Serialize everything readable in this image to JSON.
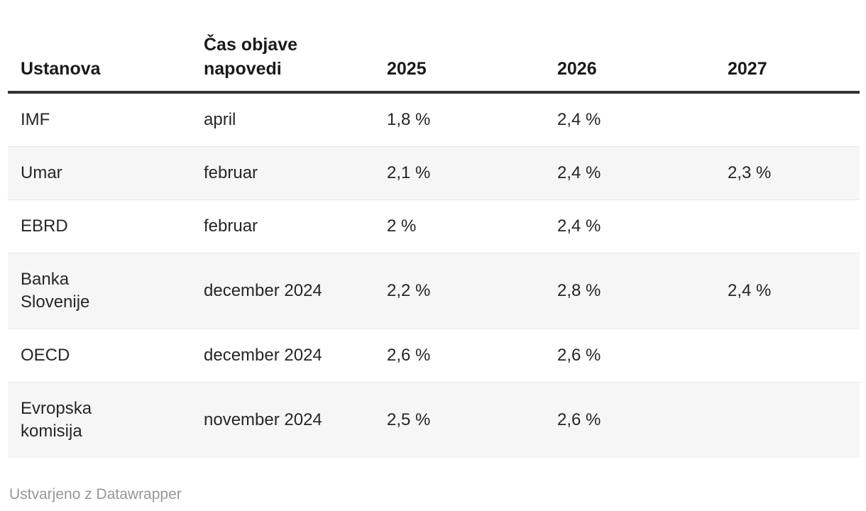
{
  "chart_data": {
    "type": "table",
    "columns": [
      "Ustanova",
      "Čas objave napovedi",
      "2025",
      "2026",
      "2027"
    ],
    "rows": [
      [
        "IMF",
        "april",
        "1,8 %",
        "2,4 %",
        ""
      ],
      [
        "Umar",
        "februar",
        "2,1 %",
        "2,4 %",
        "2,3 %"
      ],
      [
        "EBRD",
        "februar",
        "2 %",
        "2,4 %",
        ""
      ],
      [
        "Banka Slovenije",
        "december 2024",
        "2,2 %",
        "2,8 %",
        "2,4 %"
      ],
      [
        "OECD",
        "december 2024",
        "2,6 %",
        "2,6 %",
        ""
      ],
      [
        "Evropska komisija",
        "november 2024",
        "2,5 %",
        "2,6 %",
        ""
      ]
    ],
    "layout": {
      "header_rule": true,
      "zebra_striping": true,
      "striped_row_indices": [
        1,
        3,
        5
      ],
      "column_alignment": "left"
    }
  },
  "footer": {
    "credit": "Ustvarjeno z Datawrapper"
  },
  "colors": {
    "header_text": "#1a1a1a",
    "body_text": "#262626",
    "header_rule": "#333333",
    "row_stripe": "#f6f6f6",
    "row_divider": "#e9e9e9",
    "credit_text": "#979797",
    "background": "#ffffff"
  }
}
